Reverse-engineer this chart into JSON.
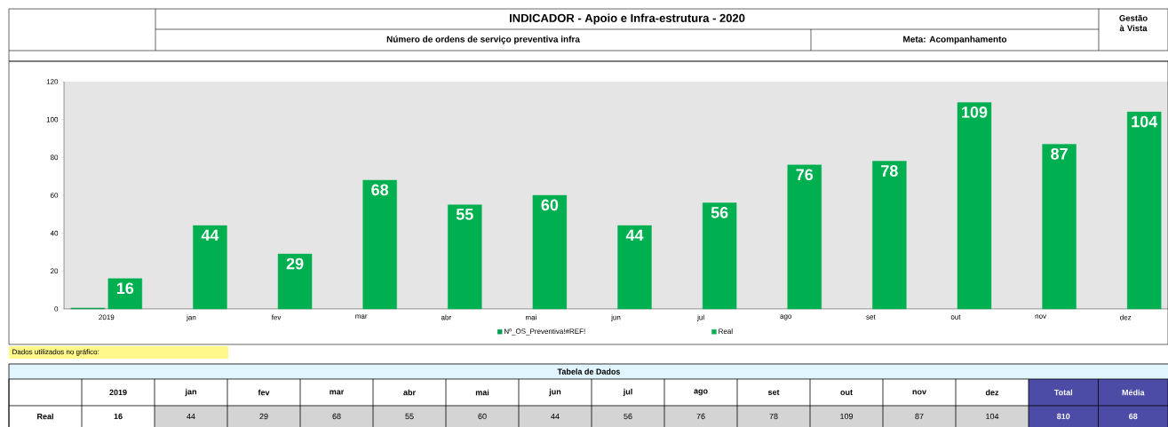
{
  "chart_data": {
    "type": "bar",
    "title": "INDICADOR - Apoio e Infra-estrutura - 2020",
    "subtitle": "Número de ordens de serviço preventiva infra",
    "categories": [
      "2019",
      "jan",
      "fev",
      "mar",
      "abr",
      "mai",
      "jun",
      "jul",
      "ago",
      "set",
      "out",
      "nov",
      "dez"
    ],
    "series": [
      {
        "name": "Nº_OS_Preventiva!#REF!",
        "color": "#00a050",
        "values": [
          0.5,
          null,
          null,
          null,
          null,
          null,
          null,
          null,
          null,
          null,
          null,
          null,
          null
        ]
      },
      {
        "name": "Real",
        "color": "#00b050",
        "values": [
          16,
          44,
          29,
          68,
          55,
          60,
          44,
          56,
          76,
          78,
          109,
          87,
          104
        ],
        "value_labels": [
          "16",
          "44",
          "29",
          "68",
          "55",
          "60",
          "44",
          "56",
          "76",
          "78",
          "109",
          "87",
          "104"
        ]
      }
    ],
    "ylim": [
      0,
      120
    ],
    "yticks": [
      0,
      20,
      40,
      60,
      80,
      100,
      120
    ],
    "legend": "bottom",
    "annotations": [
      "Meta: Acompanhamento",
      "Gestão à Vista",
      "Dados utilizados no gráfico:",
      "Tabela de Dados",
      "Total",
      "Média",
      "810",
      "68"
    ]
  }
}
